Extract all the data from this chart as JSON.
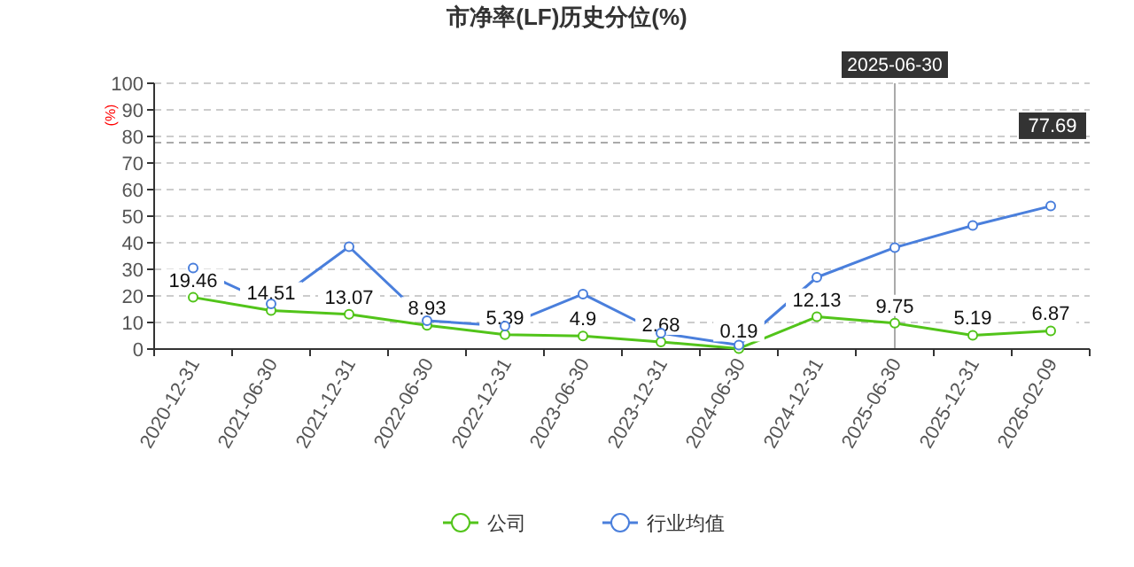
{
  "chart_data": {
    "type": "line",
    "title": "市净率(LF)历史分位(%)",
    "ylabel": "(%)",
    "categories": [
      "2020-12-31",
      "2021-06-30",
      "2021-12-31",
      "2022-06-30",
      "2022-12-31",
      "2023-06-30",
      "2023-12-31",
      "2024-06-30",
      "2024-12-31",
      "2025-06-30",
      "2025-12-31",
      "2026-02-09"
    ],
    "series": [
      {
        "name": "公司",
        "color": "#52c41a",
        "values": [
          19.46,
          14.51,
          13.07,
          8.93,
          5.39,
          4.9,
          2.68,
          0.19,
          12.13,
          9.75,
          5.19,
          6.87
        ],
        "data_labels": true
      },
      {
        "name": "行业均值",
        "color": "#4a7fdc",
        "values": [
          30.5,
          17,
          38.5,
          10.7,
          8.7,
          20.7,
          6,
          1.5,
          27,
          38.2,
          46.5,
          53.8
        ]
      }
    ],
    "ylim": [
      0,
      100
    ],
    "yticks": [
      0,
      10,
      20,
      30,
      40,
      50,
      60,
      70,
      80,
      90,
      100
    ],
    "grid": "y",
    "legend": "bottom",
    "marker": "circle",
    "ref_lines": [
      {
        "axis": "y",
        "value": 77.69,
        "label": "77.69",
        "color": "#aaaaaa"
      },
      {
        "axis": "x",
        "value": "2025-06-30",
        "label": "2025-06-30",
        "color": "#aaaaaa"
      }
    ]
  }
}
